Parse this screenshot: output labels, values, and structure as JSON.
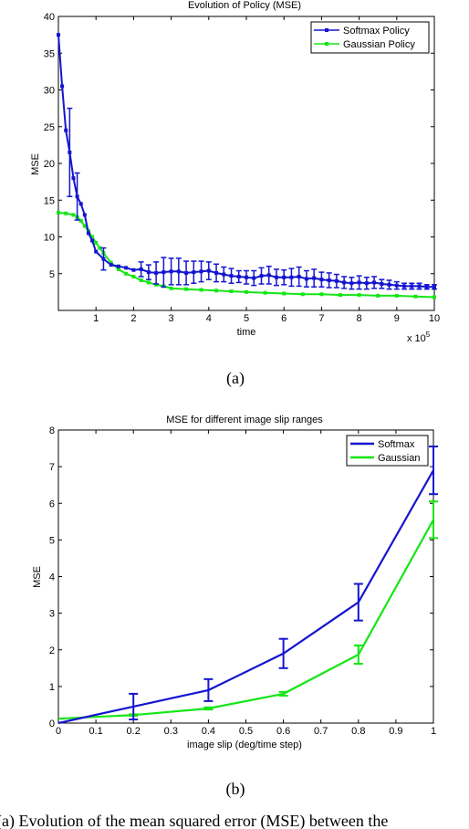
{
  "caption": "(a) Evolution of the mean squared error (MSE) between the",
  "colors": {
    "softmax": "#1515d0",
    "gaussian": "#15e615"
  },
  "chart_data": [
    {
      "type": "line",
      "panel_label": "(a)",
      "title": "Evolution of Policy (MSE)",
      "xlabel": "time",
      "ylabel": "MSE",
      "x_multiplier_base": "x 10",
      "x_multiplier_exp": "5",
      "xlim": [
        0,
        10
      ],
      "ylim": [
        0,
        40
      ],
      "xticks": [
        1,
        2,
        3,
        4,
        5,
        6,
        7,
        8,
        9,
        10
      ],
      "yticks": [
        5,
        10,
        15,
        20,
        25,
        30,
        35,
        40
      ],
      "legend": {
        "position": "top-right",
        "entries": [
          "Softmax Policy",
          "Gaussian Policy"
        ]
      },
      "series": [
        {
          "name": "Softmax Policy",
          "color": "#1515d0",
          "x": [
            0.0,
            0.1,
            0.2,
            0.3,
            0.4,
            0.5,
            0.6,
            0.7,
            0.8,
            0.9,
            1.0,
            1.2,
            1.4,
            1.6,
            1.8,
            2.0,
            2.2,
            2.4,
            2.6,
            2.8,
            3.0,
            3.2,
            3.4,
            3.6,
            3.8,
            4.0,
            4.2,
            4.4,
            4.6,
            4.8,
            5.0,
            5.2,
            5.4,
            5.6,
            5.8,
            6.0,
            6.2,
            6.4,
            6.6,
            6.8,
            7.0,
            7.2,
            7.4,
            7.6,
            7.8,
            8.0,
            8.2,
            8.4,
            8.6,
            8.8,
            9.0,
            9.2,
            9.4,
            9.6,
            9.8,
            10.0
          ],
          "y": [
            37.5,
            30.5,
            24.5,
            21.5,
            18.0,
            15.5,
            14.5,
            13.0,
            10.5,
            9.5,
            8.0,
            7.0,
            6.2,
            6.0,
            5.8,
            5.5,
            5.6,
            5.2,
            5.1,
            5.2,
            5.3,
            5.3,
            5.1,
            5.2,
            5.3,
            5.4,
            5.1,
            4.9,
            4.7,
            4.6,
            4.5,
            4.4,
            4.7,
            4.8,
            4.5,
            4.5,
            4.5,
            4.6,
            4.3,
            4.4,
            4.2,
            4.1,
            4.0,
            3.8,
            3.7,
            3.8,
            3.7,
            3.8,
            3.6,
            3.5,
            3.4,
            3.3,
            3.3,
            3.3,
            3.2,
            3.2
          ],
          "error_x": [
            0.3,
            0.5,
            1.2,
            2.2,
            2.4,
            2.6,
            2.8,
            3.0,
            3.2,
            3.4,
            3.6,
            3.8,
            4.0,
            4.2,
            4.4,
            4.6,
            4.8,
            5.0,
            5.2,
            5.4,
            5.6,
            5.8,
            6.0,
            6.2,
            6.4,
            6.6,
            6.8,
            7.0,
            7.2,
            7.4,
            7.6,
            7.8,
            8.0,
            8.2,
            8.4,
            8.6,
            8.8,
            9.0,
            9.2,
            9.4,
            9.6,
            9.8,
            10.0
          ],
          "error_y": [
            21.5,
            15.5,
            7.0,
            5.6,
            5.2,
            5.1,
            5.2,
            5.3,
            5.3,
            5.1,
            5.2,
            5.3,
            5.4,
            5.1,
            4.9,
            4.7,
            4.6,
            4.5,
            4.4,
            4.7,
            4.8,
            4.5,
            4.5,
            4.5,
            4.6,
            4.3,
            4.4,
            4.2,
            4.1,
            4.0,
            3.8,
            3.7,
            3.8,
            3.7,
            3.8,
            3.6,
            3.5,
            3.4,
            3.3,
            3.3,
            3.3,
            3.2,
            3.2
          ],
          "error_delta": [
            6.0,
            3.2,
            1.5,
            1.0,
            1.0,
            1.5,
            2.0,
            1.8,
            1.8,
            1.6,
            1.5,
            1.4,
            1.2,
            1.2,
            1.0,
            1.0,
            0.8,
            0.9,
            1.0,
            1.1,
            1.2,
            1.1,
            1.0,
            1.2,
            1.3,
            1.1,
            1.2,
            1.0,
            1.0,
            0.9,
            0.8,
            0.8,
            0.9,
            0.8,
            0.8,
            0.6,
            0.6,
            0.5,
            0.4,
            0.4,
            0.4,
            0.3,
            0.3
          ]
        },
        {
          "name": "Gaussian Policy",
          "color": "#15e615",
          "x": [
            0.0,
            0.2,
            0.4,
            0.5,
            0.6,
            0.7,
            0.8,
            0.9,
            1.0,
            1.1,
            1.2,
            1.4,
            1.6,
            1.8,
            2.0,
            2.2,
            2.4,
            2.6,
            2.8,
            3.0,
            3.4,
            3.8,
            4.2,
            4.6,
            5.0,
            5.5,
            6.0,
            6.5,
            7.0,
            7.5,
            8.0,
            8.5,
            9.0,
            9.5,
            10.0
          ],
          "y": [
            13.3,
            13.2,
            13.0,
            12.7,
            12.2,
            11.5,
            10.8,
            10.0,
            9.2,
            8.5,
            7.8,
            6.5,
            5.6,
            5.0,
            4.6,
            4.1,
            3.8,
            3.5,
            3.3,
            3.0,
            2.9,
            2.8,
            2.7,
            2.6,
            2.5,
            2.4,
            2.3,
            2.2,
            2.2,
            2.1,
            2.1,
            2.0,
            2.0,
            1.9,
            1.8
          ]
        }
      ]
    },
    {
      "type": "line",
      "panel_label": "(b)",
      "title": "MSE for different image slip ranges",
      "xlabel": "image slip (deg/time step)",
      "ylabel": "MSE",
      "xlim": [
        0,
        1
      ],
      "ylim": [
        0,
        8
      ],
      "xticks": [
        "0",
        "0.1",
        "0.2",
        "0.3",
        "0.4",
        "0.5",
        "0.6",
        "0.7",
        "0.8",
        "0.9",
        "1"
      ],
      "yticks": [
        "0",
        "1",
        "2",
        "3",
        "4",
        "5",
        "6",
        "7",
        "8"
      ],
      "legend": {
        "position": "top-right",
        "entries": [
          "Softmax",
          "Gaussian"
        ]
      },
      "series": [
        {
          "name": "Softmax",
          "color": "#1515d0",
          "x": [
            0,
            0.2,
            0.4,
            0.6,
            0.8,
            1.0
          ],
          "y": [
            0.0,
            0.45,
            0.9,
            1.9,
            3.3,
            6.9
          ],
          "error_delta": [
            0.0,
            0.35,
            0.3,
            0.4,
            0.5,
            0.65
          ]
        },
        {
          "name": "Gaussian",
          "color": "#15e615",
          "x": [
            0,
            0.2,
            0.4,
            0.6,
            0.8,
            1.0
          ],
          "y": [
            0.12,
            0.22,
            0.4,
            0.8,
            1.87,
            5.55
          ],
          "error_delta": [
            0.0,
            0.02,
            0.03,
            0.05,
            0.25,
            0.5
          ]
        }
      ]
    }
  ]
}
